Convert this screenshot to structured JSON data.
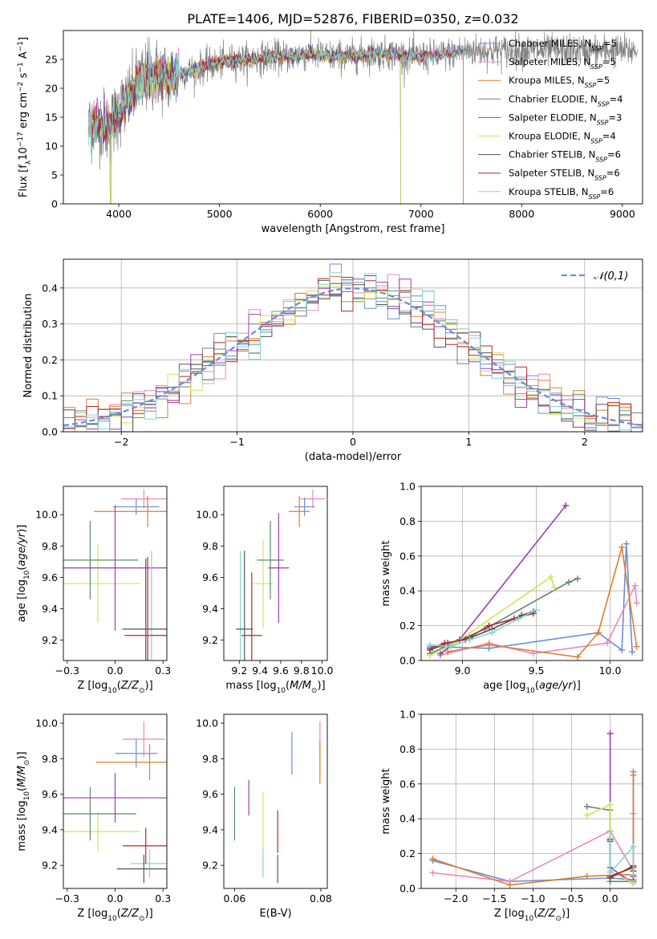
{
  "figure_title": "PLATE=1406, MJD=52876, FIBERID=0350, z=0.032",
  "colors": {
    "Chabrier MILES": "#6a8fd8",
    "Salpeter MILES": "#e889bc",
    "Kroupa MILES": "#dc7f2e",
    "Chabrier ELODIE": "#5f8a66",
    "Salpeter ELODIE": "#9a3dbc",
    "Kroupa ELODIE": "#cfe659",
    "Chabrier STELIB": "#555555",
    "Salpeter STELIB": "#b5282b",
    "Kroupa STELIB": "#86d4d6",
    "gauss": "#6a8fd8"
  },
  "legend_labels": [
    {
      "name": "Chabrier MILES",
      "pre": "Chabrier MILES, N",
      "sub": "SSP",
      "post": "=5"
    },
    {
      "name": "Salpeter MILES",
      "pre": "Salpeter MILES, N",
      "sub": "SSP",
      "post": "=5"
    },
    {
      "name": "Kroupa MILES",
      "pre": "Kroupa MILES, N",
      "sub": "SSP",
      "post": "=5"
    },
    {
      "name": "Chabrier ELODIE",
      "pre": "Chabrier ELODIE, N",
      "sub": "SSP",
      "post": "=4"
    },
    {
      "name": "Salpeter ELODIE",
      "pre": "Salpeter ELODIE, N",
      "sub": "SSP",
      "post": "=3"
    },
    {
      "name": "Kroupa ELODIE",
      "pre": "Kroupa ELODIE, N",
      "sub": "SSP",
      "post": "=4"
    },
    {
      "name": "Chabrier STELIB",
      "pre": "Chabrier STELIB, N",
      "sub": "SSP",
      "post": "=6"
    },
    {
      "name": "Salpeter STELIB",
      "pre": "Salpeter STELIB, N",
      "sub": "SSP",
      "post": "=6"
    },
    {
      "name": "Kroupa STELIB",
      "pre": "Kroupa STELIB, N",
      "sub": "SSP",
      "post": "=6"
    }
  ],
  "chart_data": [
    {
      "id": "spectrum",
      "type": "line",
      "xlabel": "wavelength [Angstrom, rest frame]",
      "ylabel": "Flux [f_λ 10^-17 erg cm^-2 s^-1 A^-1]",
      "xlim": [
        3450,
        9200
      ],
      "ylim": [
        0,
        30
      ],
      "xticks": [
        4000,
        5000,
        6000,
        7000,
        8000,
        9000
      ],
      "yticks": [
        0,
        5,
        10,
        15,
        20,
        25
      ],
      "data_wavelength_range": [
        3700,
        9150
      ],
      "continuum": {
        "x": [
          3700,
          3800,
          3900,
          4000,
          4100,
          4200,
          4300,
          4400,
          4500,
          4700,
          4900,
          5100,
          5300,
          5500,
          5700,
          5900,
          6100,
          6300,
          6500,
          6700,
          6900,
          7100,
          7300,
          7440
        ],
        "y": [
          13,
          14.5,
          13,
          16,
          18,
          21,
          22,
          22.5,
          22,
          23,
          24,
          24.8,
          25,
          25.5,
          25.5,
          26,
          25.5,
          25.5,
          26,
          26,
          25.5,
          25.5,
          26,
          26.5
        ]
      },
      "series_cutoff": {
        "Kroupa MILES": 7420,
        "Chabrier MILES": 7420,
        "Salpeter MILES": 7420,
        "Kroupa ELODIE": 6800,
        "Chabrier ELODIE": 6800,
        "Salpeter ELODIE": 6800
      },
      "dips": [
        {
          "x": 3920,
          "y": 0
        },
        {
          "x": 6800,
          "y": 0
        },
        {
          "x": 7420,
          "y": 0
        }
      ],
      "legend_position": "right"
    },
    {
      "id": "residuals",
      "type": "histogram",
      "xlabel": "(data-model)/error",
      "ylabel": "Normed distribution",
      "xlim": [
        -2.5,
        2.5
      ],
      "ylim": [
        0,
        0.48
      ],
      "xticks": [
        -2,
        -1,
        0,
        1,
        2
      ],
      "yticks": [
        0,
        0.1,
        0.2,
        0.3,
        0.4
      ],
      "bin_width": 0.1,
      "legend_label": "𝒩(0,1)",
      "legend_position": "top-right",
      "grid": true
    },
    {
      "id": "age_vs_Z",
      "type": "errorbar",
      "xlabel": "Z [log10(Z/Z⊙)]",
      "ylabel": "age [log10(age/yr)]",
      "xlim": [
        -0.27,
        0.27
      ],
      "ylim": [
        9.07,
        10.18
      ],
      "xticks": [
        -0.25,
        0.0,
        0.25
      ],
      "yticks": [
        9.2,
        9.4,
        9.6,
        9.8,
        10.0
      ],
      "points": [
        {
          "name": "Salpeter MILES",
          "x": 0.15,
          "y": 10.1,
          "xerr": 0.12,
          "yerr": 0.06
        },
        {
          "name": "Chabrier MILES",
          "x": 0.11,
          "y": 10.05,
          "xerr": 0.12,
          "yerr": 0.05
        },
        {
          "name": "Kroupa MILES",
          "x": 0.17,
          "y": 10.02,
          "xerr": 0.28,
          "yerr": 0.1
        },
        {
          "name": "Kroupa ELODIE",
          "x": -0.09,
          "y": 9.56,
          "xerr": 0.22,
          "yerr": 0.25
        },
        {
          "name": "Chabrier ELODIE",
          "x": -0.13,
          "y": 9.71,
          "xerr": 0.25,
          "yerr": 0.25
        },
        {
          "name": "Salpeter ELODIE",
          "x": 0.0,
          "y": 9.66,
          "xerr": 0.43,
          "yerr": 0.4
        },
        {
          "name": "Kroupa STELIB",
          "x": 0.19,
          "y": 9.27,
          "xerr": 0.16,
          "yerr": 0.5
        },
        {
          "name": "Chabrier STELIB",
          "x": 0.16,
          "y": 9.27,
          "xerr": 0.12,
          "yerr": 0.45
        },
        {
          "name": "Salpeter STELIB",
          "x": 0.17,
          "y": 9.23,
          "xerr": 0.12,
          "yerr": 0.5
        }
      ]
    },
    {
      "id": "age_vs_mass",
      "type": "errorbar",
      "xlabel": "mass [log10(M/M⊙)]",
      "ylabel": "",
      "xlim": [
        9.05,
        10.05
      ],
      "ylim": [
        9.07,
        10.18
      ],
      "xticks": [
        9.2,
        9.4,
        9.6,
        9.8,
        10.0
      ],
      "yticks": [
        9.2,
        9.4,
        9.6,
        9.8,
        10.0
      ],
      "points": [
        {
          "name": "Salpeter MILES",
          "x": 9.91,
          "y": 10.1,
          "xerr": 0.12,
          "yerr": 0.06
        },
        {
          "name": "Chabrier MILES",
          "x": 9.83,
          "y": 10.05,
          "xerr": 0.1,
          "yerr": 0.06
        },
        {
          "name": "Kroupa MILES",
          "x": 9.78,
          "y": 10.02,
          "xerr": 0.1,
          "yerr": 0.1
        },
        {
          "name": "Kroupa ELODIE",
          "x": 9.43,
          "y": 9.56,
          "xerr": 0.1,
          "yerr": 0.28
        },
        {
          "name": "Chabrier ELODIE",
          "x": 9.5,
          "y": 9.71,
          "xerr": 0.13,
          "yerr": 0.25
        },
        {
          "name": "Salpeter ELODIE",
          "x": 9.58,
          "y": 9.66,
          "xerr": 0.1,
          "yerr": 0.35
        },
        {
          "name": "Kroupa STELIB",
          "x": 9.21,
          "y": 9.27,
          "xerr": 0.05,
          "yerr": 0.5
        },
        {
          "name": "Chabrier STELIB",
          "x": 9.25,
          "y": 9.27,
          "xerr": 0.08,
          "yerr": 0.5
        },
        {
          "name": "Salpeter STELIB",
          "x": 9.32,
          "y": 9.23,
          "xerr": 0.1,
          "yerr": 0.4
        }
      ]
    },
    {
      "id": "weight_vs_age",
      "type": "line",
      "xlabel": "age [log10(age/yr)]",
      "ylabel": "mass weight",
      "xlim": [
        8.72,
        10.22
      ],
      "ylim": [
        0,
        1.0
      ],
      "xticks": [
        9.0,
        9.5,
        10.0
      ],
      "yticks": [
        0,
        0.2,
        0.4,
        0.6,
        0.8,
        1.0
      ],
      "grid": true,
      "series": [
        {
          "name": "Chabrier MILES",
          "x": [
            8.78,
            9.18,
            9.92,
            10.08,
            10.11,
            10.15
          ],
          "y": [
            0.08,
            0.07,
            0.16,
            0.06,
            0.67,
            0.05
          ]
        },
        {
          "name": "Salpeter MILES",
          "x": [
            8.85,
            9.18,
            9.48,
            9.98,
            10.17,
            10.18
          ],
          "y": [
            0.03,
            0.1,
            0.04,
            0.1,
            0.43,
            0.33
          ]
        },
        {
          "name": "Kroupa MILES",
          "x": [
            8.9,
            9.18,
            9.78,
            9.92,
            10.08,
            10.18
          ],
          "y": [
            0.05,
            0.09,
            0.02,
            0.16,
            0.65,
            0.08
          ]
        },
        {
          "name": "Chabrier ELODIE",
          "x": [
            8.78,
            9.15,
            9.72,
            9.78
          ],
          "y": [
            0.04,
            0.18,
            0.45,
            0.47
          ]
        },
        {
          "name": "Salpeter ELODIE",
          "x": [
            8.85,
            8.98,
            9.7
          ],
          "y": [
            0.04,
            0.12,
            0.89
          ]
        },
        {
          "name": "Kroupa ELODIE",
          "x": [
            8.78,
            8.95,
            9.6,
            9.62
          ],
          "y": [
            0.03,
            0.1,
            0.48,
            0.42
          ]
        },
        {
          "name": "Chabrier STELIB",
          "x": [
            8.78,
            8.9,
            9.05,
            9.2,
            9.4,
            9.48
          ],
          "y": [
            0.06,
            0.1,
            0.13,
            0.18,
            0.26,
            0.28
          ]
        },
        {
          "name": "Salpeter STELIB",
          "x": [
            8.78,
            8.88,
            9.02,
            9.18,
            9.35,
            9.48
          ],
          "y": [
            0.07,
            0.1,
            0.12,
            0.2,
            0.24,
            0.27
          ]
        },
        {
          "name": "Kroupa STELIB",
          "x": [
            8.78,
            8.92,
            9.05,
            9.2,
            9.38,
            9.5
          ],
          "y": [
            0.09,
            0.08,
            0.12,
            0.16,
            0.24,
            0.29
          ]
        }
      ]
    },
    {
      "id": "mass_vs_Z",
      "type": "errorbar",
      "xlabel": "Z [log10(Z/Z⊙)]",
      "ylabel": "mass [log10(M/M⊙)]",
      "xlim": [
        -0.27,
        0.27
      ],
      "ylim": [
        9.07,
        10.05
      ],
      "xticks": [
        -0.25,
        0.0,
        0.25
      ],
      "yticks": [
        9.2,
        9.4,
        9.6,
        9.8,
        10.0
      ],
      "points": [
        {
          "name": "Salpeter MILES",
          "x": 0.15,
          "y": 9.91,
          "xerr": 0.11,
          "yerr": 0.1
        },
        {
          "name": "Chabrier MILES",
          "x": 0.11,
          "y": 9.83,
          "xerr": 0.11,
          "yerr": 0.08
        },
        {
          "name": "Kroupa MILES",
          "x": 0.18,
          "y": 9.78,
          "xerr": 0.28,
          "yerr": 0.1
        },
        {
          "name": "Kroupa ELODIE",
          "x": -0.09,
          "y": 9.39,
          "xerr": 0.22,
          "yerr": 0.11
        },
        {
          "name": "Chabrier ELODIE",
          "x": -0.13,
          "y": 9.49,
          "xerr": 0.24,
          "yerr": 0.15
        },
        {
          "name": "Salpeter ELODIE",
          "x": 0.0,
          "y": 9.58,
          "xerr": 0.43,
          "yerr": 0.14
        },
        {
          "name": "Kroupa STELIB",
          "x": 0.18,
          "y": 9.21,
          "xerr": 0.1,
          "yerr": 0.08
        },
        {
          "name": "Chabrier STELIB",
          "x": 0.15,
          "y": 9.18,
          "xerr": 0.14,
          "yerr": 0.08
        },
        {
          "name": "Salpeter STELIB",
          "x": 0.16,
          "y": 9.31,
          "xerr": 0.12,
          "yerr": 0.1
        }
      ]
    },
    {
      "id": "mass_vs_ebv",
      "type": "errorbar",
      "xlabel": "E(B-V)",
      "ylabel": "",
      "xlim": [
        0.0575,
        0.0815
      ],
      "ylim": [
        9.07,
        10.05
      ],
      "xticks": [
        0.06,
        0.08
      ],
      "yticks": [
        9.2,
        9.4,
        9.6,
        9.8,
        10.0
      ],
      "points": [
        {
          "name": "Salpeter MILES",
          "x": 0.0798,
          "y": 9.91,
          "yerr": 0.1
        },
        {
          "name": "Chabrier MILES",
          "x": 0.0733,
          "y": 9.83,
          "yerr": 0.12
        },
        {
          "name": "Kroupa MILES",
          "x": 0.0798,
          "y": 9.78,
          "yerr": 0.12
        },
        {
          "name": "Kroupa ELODIE",
          "x": 0.0666,
          "y": 9.38,
          "yerr": 0.23
        },
        {
          "name": "Chabrier ELODIE",
          "x": 0.06,
          "y": 9.49,
          "yerr": 0.15
        },
        {
          "name": "Salpeter ELODIE",
          "x": 0.0633,
          "y": 9.58,
          "yerr": 0.1
        },
        {
          "name": "Kroupa STELIB",
          "x": 0.0666,
          "y": 9.21,
          "yerr": 0.08
        },
        {
          "name": "Chabrier STELIB",
          "x": 0.07,
          "y": 9.18,
          "yerr": 0.08
        },
        {
          "name": "Salpeter STELIB",
          "x": 0.07,
          "y": 9.39,
          "yerr": 0.12
        }
      ]
    },
    {
      "id": "weight_vs_Z",
      "type": "line",
      "xlabel": "Z [log10(Z/Z⊙)]",
      "ylabel": "mass weight",
      "xlim": [
        -2.45,
        0.42
      ],
      "ylim": [
        0,
        1.0
      ],
      "xticks": [
        -2.0,
        -1.5,
        -1.0,
        -0.5,
        0.0
      ],
      "yticks": [
        0,
        0.2,
        0.4,
        0.6,
        0.8,
        1.0
      ],
      "grid": true,
      "series": [
        {
          "name": "Chabrier MILES",
          "x": [
            -2.3,
            -1.3,
            0.0,
            0.3,
            0.3
          ],
          "y": [
            0.16,
            0.04,
            0.06,
            0.05,
            0.67
          ]
        },
        {
          "name": "Salpeter MILES",
          "x": [
            -2.3,
            -1.3,
            0.0,
            0.3,
            0.3
          ],
          "y": [
            0.09,
            0.04,
            0.33,
            0.1,
            0.43
          ]
        },
        {
          "name": "Kroupa MILES",
          "x": [
            -2.3,
            -1.3,
            -0.3,
            0.3,
            0.3
          ],
          "y": [
            0.17,
            0.02,
            0.07,
            0.08,
            0.65
          ]
        },
        {
          "name": "Chabrier ELODIE",
          "x": [
            -0.3,
            0.0,
            0.0,
            0.3
          ],
          "y": [
            0.47,
            0.45,
            0.04,
            0.04
          ]
        },
        {
          "name": "Salpeter ELODIE",
          "x": [
            0.0,
            0.0,
            0.3
          ],
          "y": [
            0.89,
            0.12,
            0.03
          ]
        },
        {
          "name": "Kroupa ELODIE",
          "x": [
            -0.3,
            0.0,
            0.0,
            0.3
          ],
          "y": [
            0.42,
            0.48,
            0.1,
            0.03
          ]
        },
        {
          "name": "Chabrier STELIB",
          "x": [
            0.0,
            0.0,
            0.3,
            0.3
          ],
          "y": [
            0.28,
            0.06,
            0.13,
            0.1
          ]
        },
        {
          "name": "Salpeter STELIB",
          "x": [
            0.0,
            0.0,
            0.3,
            0.3
          ],
          "y": [
            0.27,
            0.07,
            0.12,
            0.07
          ]
        },
        {
          "name": "Kroupa STELIB",
          "x": [
            0.0,
            0.0,
            0.3,
            0.3
          ],
          "y": [
            0.29,
            0.09,
            0.24,
            0.08
          ]
        }
      ]
    }
  ]
}
